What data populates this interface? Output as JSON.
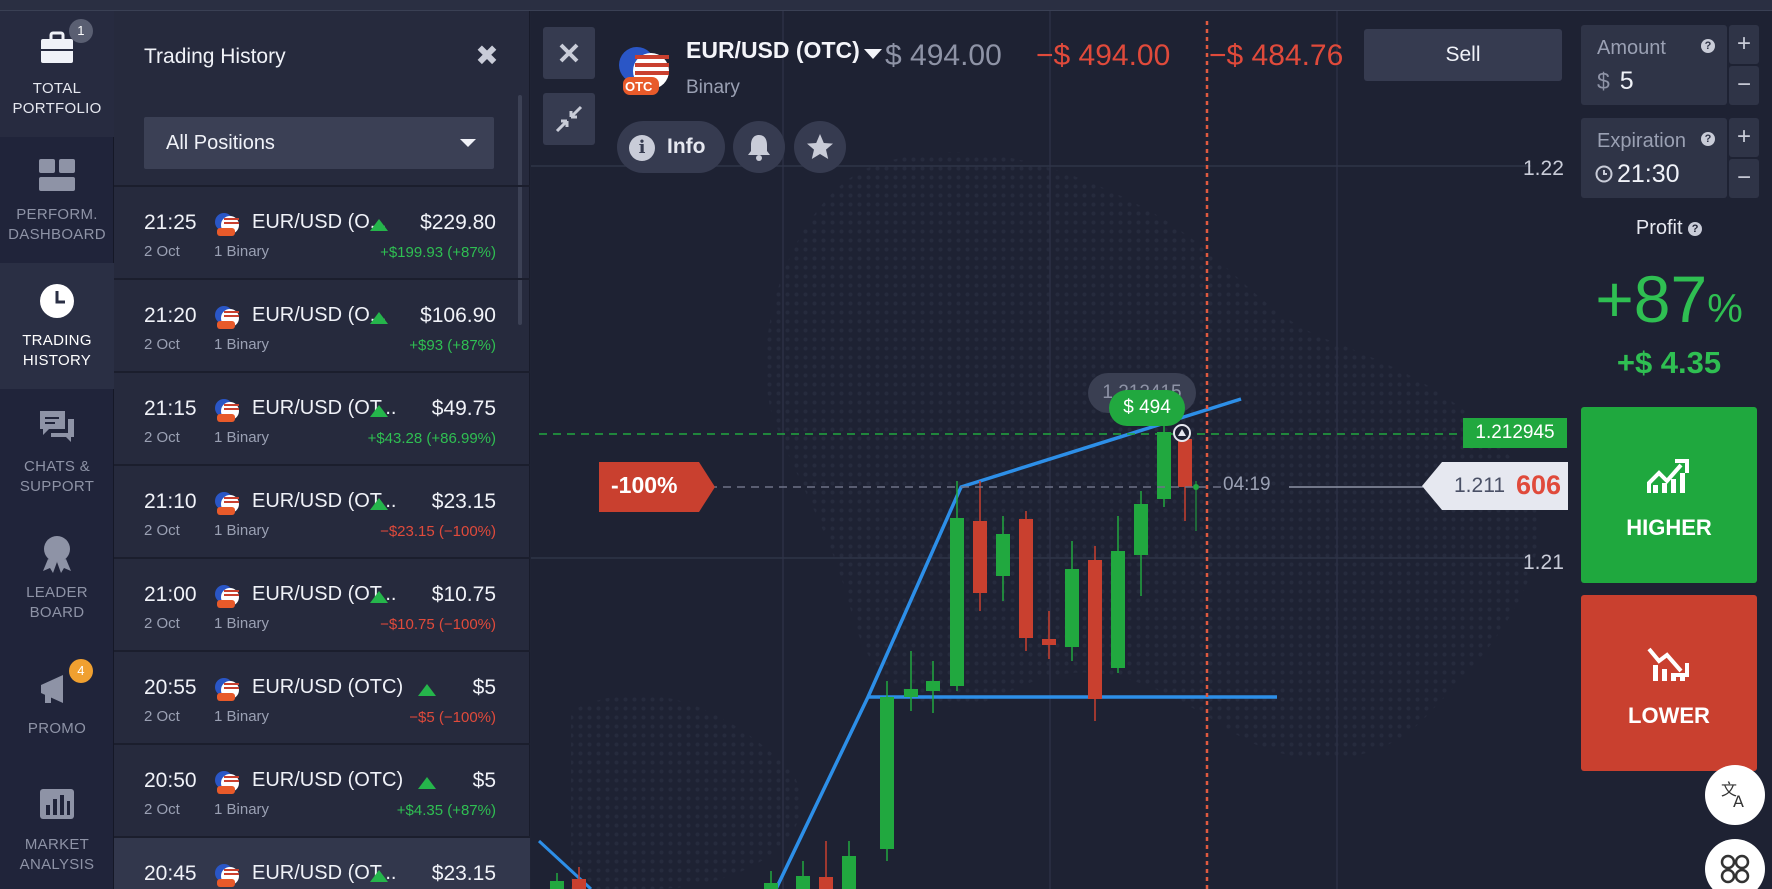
{
  "nav": {
    "items": [
      {
        "label_1": "TOTAL",
        "label_2": "PORTFOLIO",
        "badge": "1"
      },
      {
        "label_1": "PERFORM.",
        "label_2": "DASHBOARD"
      },
      {
        "label_1": "TRADING",
        "label_2": "HISTORY"
      },
      {
        "label_1": "CHATS &",
        "label_2": "SUPPORT"
      },
      {
        "label_1": "LEADER",
        "label_2": "BOARD"
      },
      {
        "label_1": "PROMO",
        "badge": "4"
      },
      {
        "label_1": "MARKET",
        "label_2": "ANALYSIS"
      }
    ]
  },
  "history": {
    "title": "Trading History",
    "filter": "All Positions",
    "rows": [
      {
        "time": "21:25",
        "date": "2 Oct",
        "pair": "EUR/USD (O...",
        "type": "1 Binary",
        "amount": "$229.80",
        "profit": "+$199.93 (+87%)",
        "profit_sign": "pos"
      },
      {
        "time": "21:20",
        "date": "2 Oct",
        "pair": "EUR/USD (O...",
        "type": "1 Binary",
        "amount": "$106.90",
        "profit": "+$93 (+87%)",
        "profit_sign": "pos"
      },
      {
        "time": "21:15",
        "date": "2 Oct",
        "pair": "EUR/USD (OT...",
        "type": "1 Binary",
        "amount": "$49.75",
        "profit": "+$43.28 (+86.99%)",
        "profit_sign": "pos"
      },
      {
        "time": "21:10",
        "date": "2 Oct",
        "pair": "EUR/USD (OT...",
        "type": "1 Binary",
        "amount": "$23.15",
        "profit": "−$23.15 (−100%)",
        "profit_sign": "neg"
      },
      {
        "time": "21:00",
        "date": "2 Oct",
        "pair": "EUR/USD (OT...",
        "type": "1 Binary",
        "amount": "$10.75",
        "profit": "−$10.75 (−100%)",
        "profit_sign": "neg"
      },
      {
        "time": "20:55",
        "date": "2 Oct",
        "pair": "EUR/USD (OTC)",
        "type": "1 Binary",
        "amount": "$5",
        "profit": "−$5 (−100%)",
        "profit_sign": "neg"
      },
      {
        "time": "20:50",
        "date": "2 Oct",
        "pair": "EUR/USD (OTC)",
        "type": "1 Binary",
        "amount": "$5",
        "profit": "+$4.35 (+87%)",
        "profit_sign": "pos"
      },
      {
        "time": "20:45",
        "date": "",
        "pair": "EUR/USD (OT...",
        "type": "",
        "amount": "$23.15",
        "profit": "",
        "profit_sign": "pos"
      }
    ]
  },
  "chart": {
    "pair": "EUR/USD (OTC)",
    "pair_type": "Binary",
    "otc_tag": "OTC",
    "price_main": "$ 494.00",
    "price_loss": "−$ 494.00",
    "price_loss_2": "−$ 484.76",
    "sell_label": "Sell",
    "info_label": "Info",
    "y_tick_high": "1.22",
    "y_tick_low": "1.21",
    "pct_tag": "-100%",
    "entry_price": "1.212945",
    "current_price_lo": "1.211",
    "current_price_hi": "606",
    "timer": "04:19",
    "bubble_grey": "1.212415",
    "bubble_green": "$ 494",
    "colors": {
      "up": "#21a83f",
      "down": "#c9402f",
      "trend": "#2d8fe8",
      "deadline": "#e05a40"
    }
  },
  "right": {
    "amount_label": "Amount",
    "amount_prefix": "$",
    "amount_value": "5",
    "expiration_label": "Expiration",
    "expiration_value": "21:30",
    "profit_label": "Profit",
    "profit_pct": "+87",
    "profit_pct_unit": "%",
    "profit_amount": "+$ 4.35",
    "higher_label": "HIGHER",
    "lower_label": "LOWER",
    "plus": "+",
    "minus": "−"
  }
}
